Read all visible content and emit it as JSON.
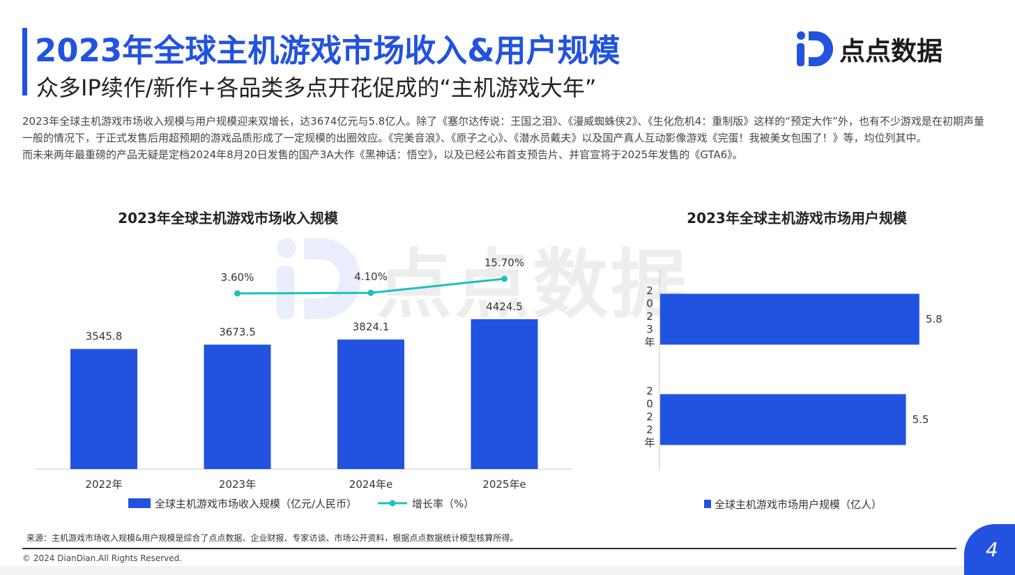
{
  "header": {
    "title": "2023年全球主机游戏市场收入&用户规模",
    "subtitle": "众多IP续作/新作+各品类多点开花促成的“主机游戏大年”"
  },
  "logo": {
    "text": "点点数据",
    "icon": "dian-dian-logo-icon",
    "brand_color": "#2153e0"
  },
  "intro": {
    "paragraph1": "2023年全球主机游戏市场收入规模与用户规模迎来双增长，达3674亿元与5.8亿人。除了《塞尔达传说：王国之泪》、《漫威蜘蛛侠2》、《生化危机4：重制版》这样的“预定大作”外，也有不少游戏是在初期声量一般的情况下，于正式发售后用超预期的游戏品质形成了一定规模的出圈效应。《完美音浪》、《原子之心》、《潜水员戴夫》以及国产真人互动影像游戏《完蛋！我被美女包围了！》等，均位列其中。",
    "paragraph2": "而未来两年最重磅的产品无疑是定档2024年8月20日发售的国产3A大作《黑神话：悟空》，以及已经公布首支预告片、并官宣将于2025年发售的《GTA6》。"
  },
  "chart_data": [
    {
      "type": "bar",
      "title": "2023年全球主机游戏市场收入规模",
      "categories": [
        "2022年",
        "2023年",
        "2024年e",
        "2025年e"
      ],
      "series": [
        {
          "name": "全球主机游戏市场收入规模（亿元/人民币）",
          "type": "bar",
          "values": [
            3545.8,
            3673.5,
            3824.1,
            4424.5
          ],
          "labels": [
            "3545.8",
            "3673.5",
            "3824.1",
            "4424.5"
          ],
          "color": "#2153e0"
        },
        {
          "name": "增长率（%）",
          "type": "line",
          "values": [
            null,
            3.6,
            4.1,
            15.7
          ],
          "labels": [
            "",
            "3.60%",
            "4.10%",
            "15.70%"
          ],
          "color": "#1cc0bf"
        }
      ],
      "legend_position": "bottom",
      "grid": false
    },
    {
      "type": "bar",
      "orientation": "horizontal",
      "title": "2023年全球主机游戏市场用户规模",
      "categories": [
        "2023年",
        "2022年"
      ],
      "series": [
        {
          "name": "全球主机游戏市场用户规模（亿人）",
          "values": [
            5.8,
            5.5
          ],
          "labels": [
            "5.8",
            "5.5"
          ],
          "color": "#2153e0"
        }
      ],
      "legend_position": "bottom",
      "grid": false
    }
  ],
  "footer": {
    "source": "来源：主机游戏市场收入规模&用户规模是综合了点点数据、企业财报、专家访谈、市场公开资料，根据点点数据统计模型核算所得。",
    "copyright": "© 2024 DianDian.All Rights Reserved.",
    "page_number": "4"
  }
}
